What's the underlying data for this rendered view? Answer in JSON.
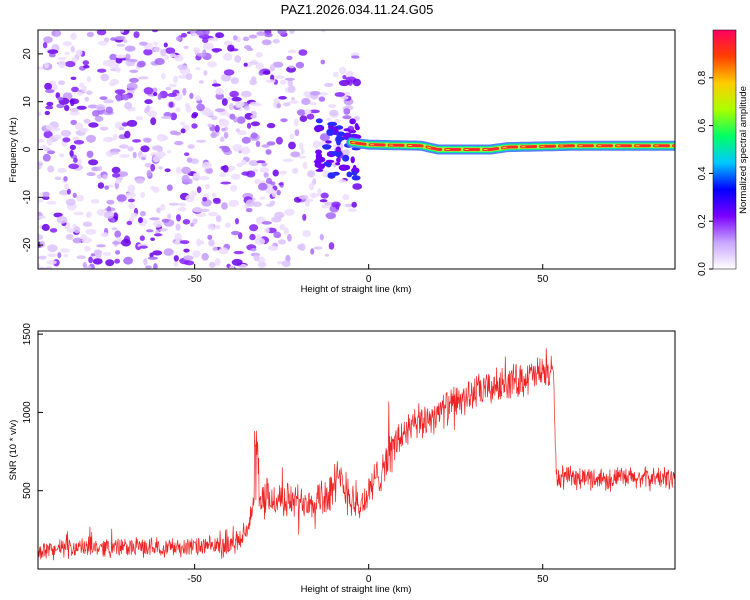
{
  "title": "PAZ1.2026.034.11.24.G05",
  "chart_data": [
    {
      "type": "heatmap",
      "name": "spectrogram",
      "xlabel": "Height of straight line (km)",
      "ylabel": "Frequency (Hz)",
      "xlim": [
        -95,
        88
      ],
      "ylim": [
        -25,
        25
      ],
      "xticks": [
        -50,
        0,
        50
      ],
      "yticks": [
        -20,
        -10,
        0,
        10,
        20
      ],
      "noise_region_x": [
        -95,
        -3
      ],
      "signal_line": {
        "x_start": -5,
        "x_end": 88,
        "points": [
          [
            -5,
            1.5
          ],
          [
            0,
            1
          ],
          [
            15,
            0.8
          ],
          [
            20,
            0
          ],
          [
            35,
            0
          ],
          [
            40,
            0.5
          ],
          [
            60,
            0.8
          ],
          [
            88,
            0.8
          ]
        ]
      },
      "colorbar": {
        "label": "Normalized spectral amplitude",
        "range": [
          0,
          1
        ],
        "ticks": [
          "0.0",
          "0.2",
          "0.4",
          "0.6",
          "0.8"
        ],
        "colors": [
          "#ffffff",
          "#c9a6ff",
          "#7a00ff",
          "#0000ff",
          "#00c8ff",
          "#00ff66",
          "#aaff00",
          "#ffcc00",
          "#ff4000",
          "#ff0060"
        ]
      }
    },
    {
      "type": "line",
      "name": "snr",
      "xlabel": "Height of straight line (km)",
      "ylabel": "SNR (10 * v/v)",
      "xlim": [
        -95,
        88
      ],
      "ylim": [
        0,
        1520
      ],
      "xticks": [
        -50,
        0,
        50
      ],
      "yticks": [
        500,
        1000,
        1500
      ],
      "color": "#ee2222",
      "series": [
        {
          "name": "SNR",
          "x": [
            -95,
            -80,
            -65,
            -50,
            -40,
            -36,
            -33,
            -31,
            -28,
            -20,
            -12,
            -8,
            -5,
            -3,
            0,
            5,
            10,
            20,
            30,
            40,
            50,
            53,
            54,
            60,
            70,
            80,
            88
          ],
          "mean": [
            120,
            140,
            140,
            140,
            150,
            200,
            400,
            420,
            450,
            430,
            470,
            560,
            470,
            380,
            480,
            700,
            870,
            1000,
            1120,
            1190,
            1250,
            1260,
            580,
            580,
            580,
            580,
            580
          ],
          "spread": [
            60,
            60,
            60,
            60,
            60,
            70,
            110,
            130,
            120,
            110,
            140,
            160,
            140,
            110,
            120,
            140,
            120,
            110,
            110,
            110,
            110,
            110,
            70,
            70,
            70,
            70,
            70
          ]
        }
      ]
    }
  ]
}
